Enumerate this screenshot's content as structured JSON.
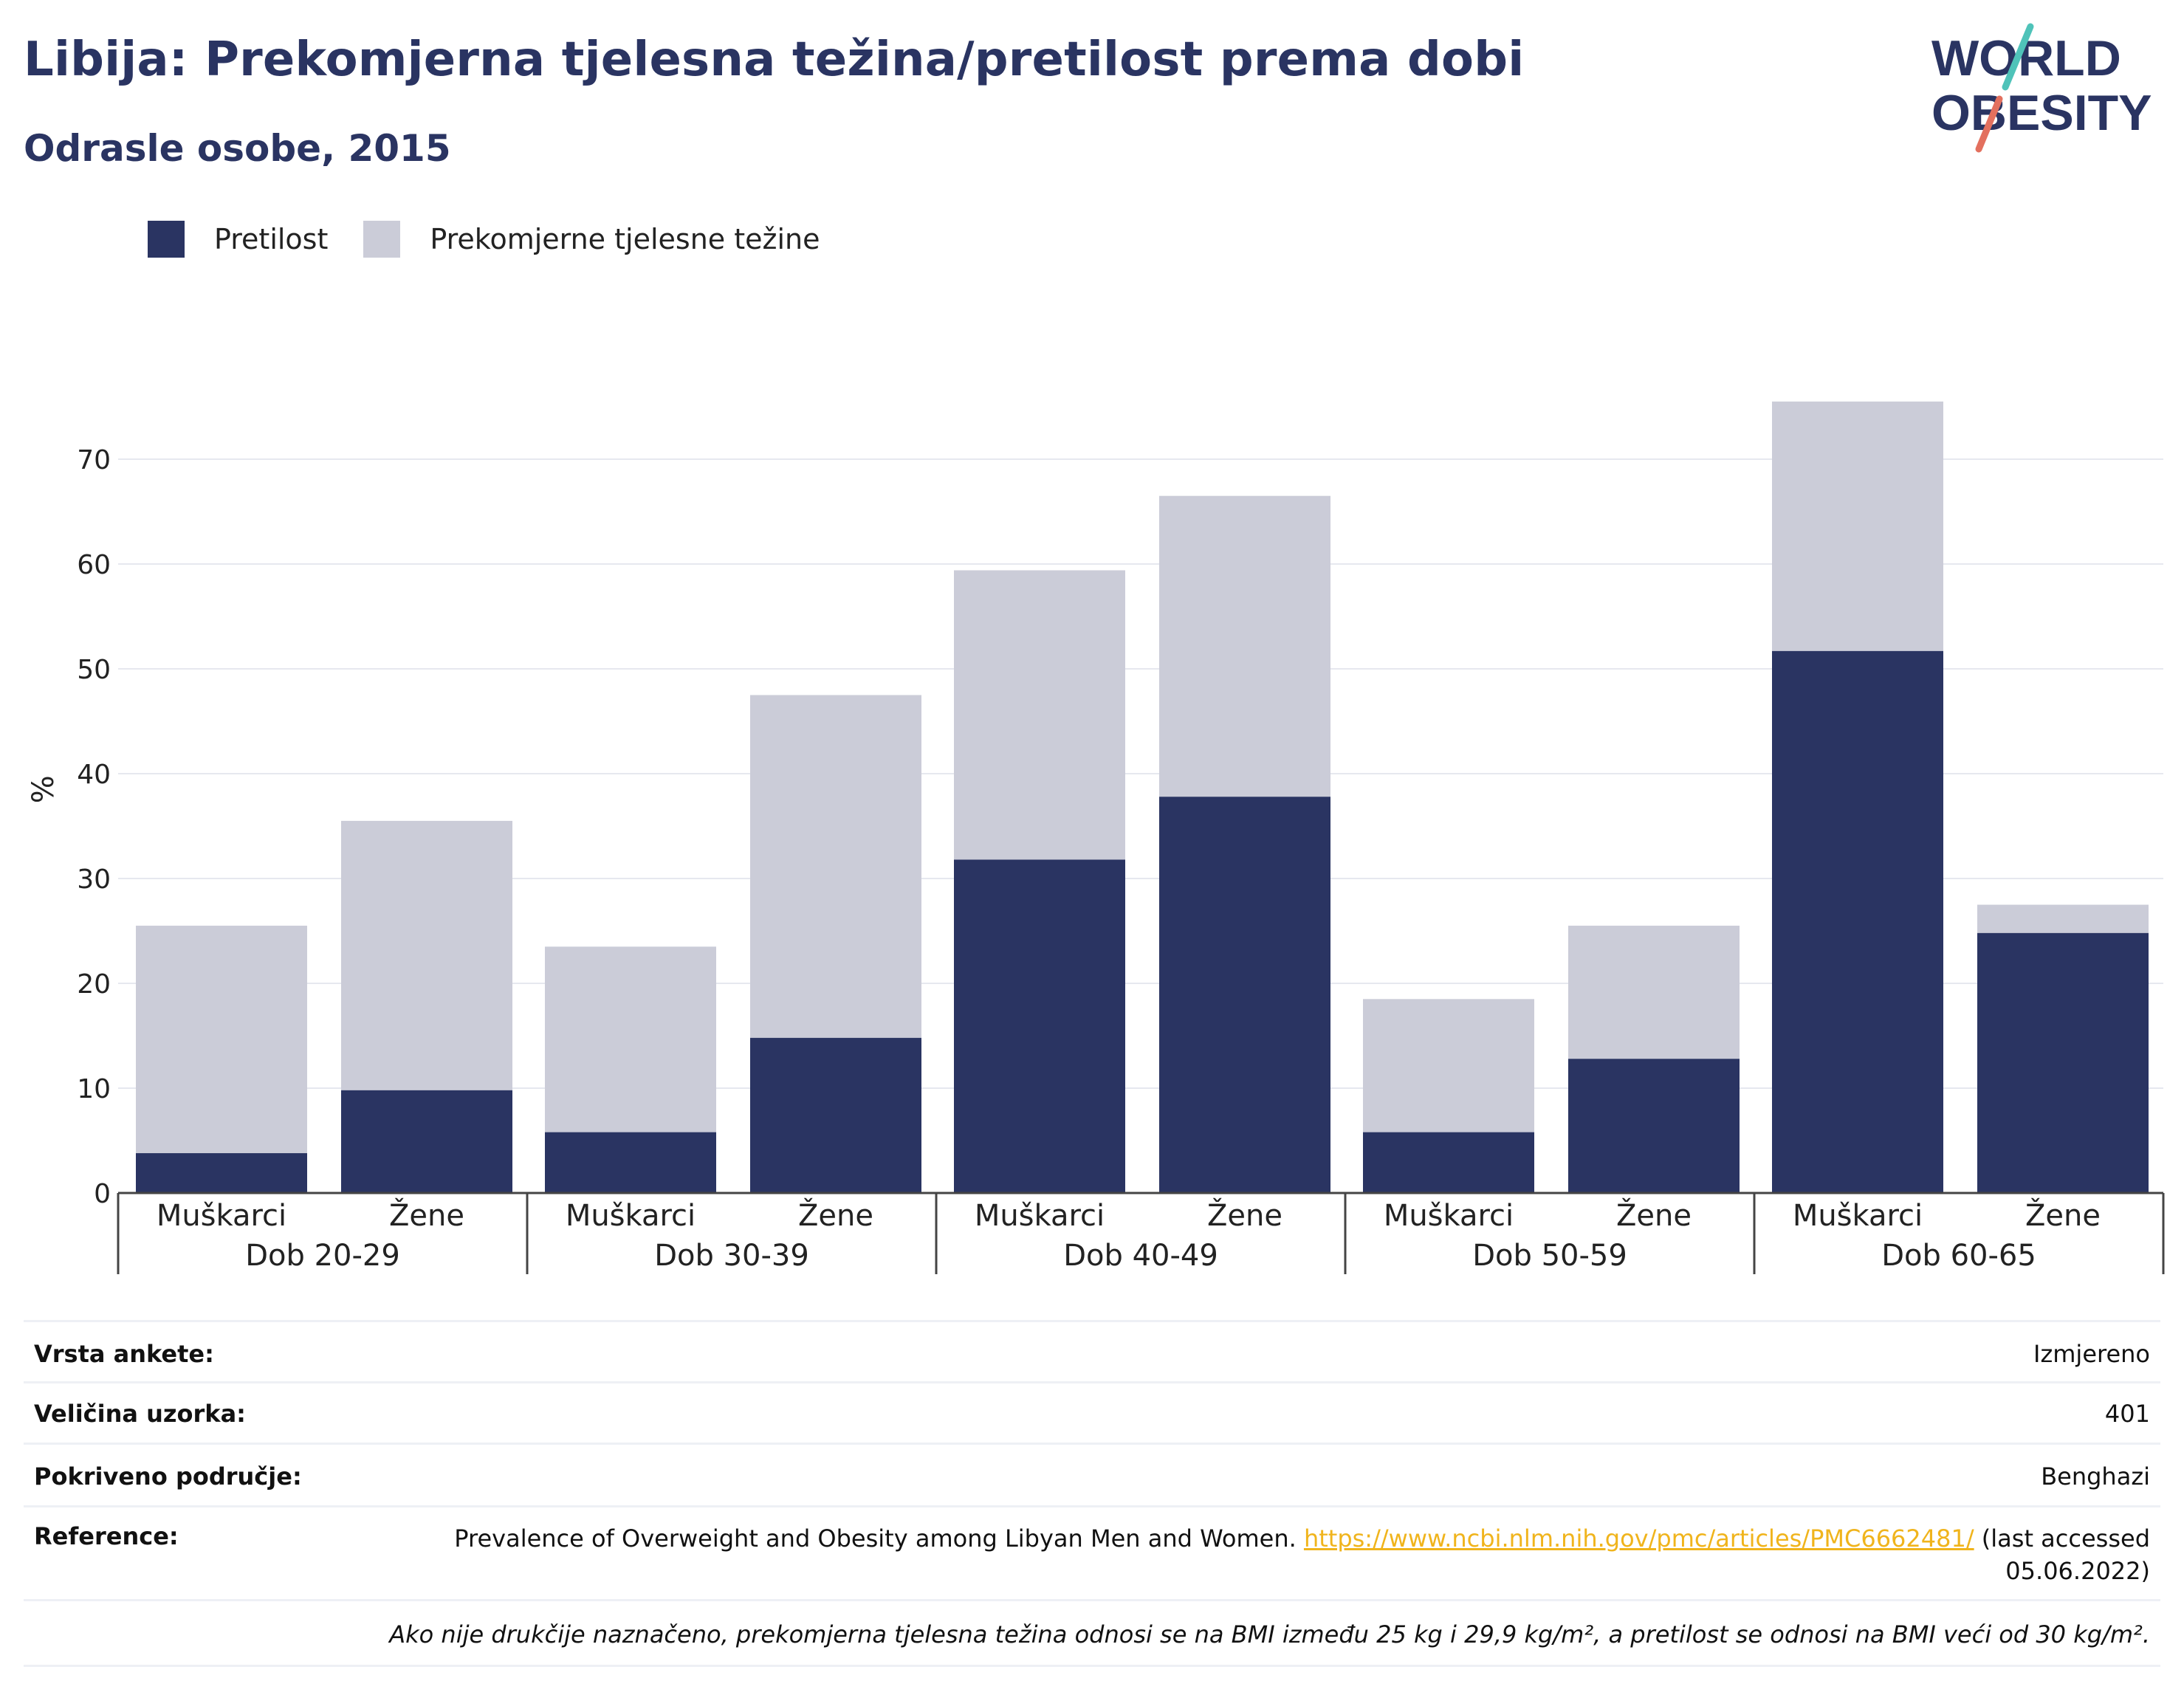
{
  "title": "Libija: Prekomjerna tjelesna težina/pretilost prema dobi",
  "subtitle": "Odrasle osobe, 2015",
  "logo": {
    "line1": "WORLD",
    "line2": "OBESITY"
  },
  "colors": {
    "obesity": "#2a3462",
    "overweight": "#cbccd8",
    "title": "#2a3462",
    "link": "#f0b41c"
  },
  "chart_data": {
    "type": "bar",
    "stacked": true,
    "ylabel": "%",
    "ylim": [
      0,
      77
    ],
    "yticks": [
      0,
      10,
      20,
      30,
      40,
      50,
      60,
      70
    ],
    "grid": true,
    "legend_position": "top-left",
    "groups": [
      {
        "label": "Dob 20-29",
        "bars": [
          {
            "label": "Muškarci",
            "obesity": 3.8,
            "total": 25.5
          },
          {
            "label": "Žene",
            "obesity": 9.8,
            "total": 35.5
          }
        ]
      },
      {
        "label": "Dob 30-39",
        "bars": [
          {
            "label": "Muškarci",
            "obesity": 5.8,
            "total": 23.5
          },
          {
            "label": "Žene",
            "obesity": 14.8,
            "total": 47.5
          }
        ]
      },
      {
        "label": "Dob 40-49",
        "bars": [
          {
            "label": "Muškarci",
            "obesity": 31.8,
            "total": 59.4
          },
          {
            "label": "Žene",
            "obesity": 37.8,
            "total": 66.5
          }
        ]
      },
      {
        "label": "Dob 50-59",
        "bars": [
          {
            "label": "Muškarci",
            "obesity": 5.8,
            "total": 18.5
          },
          {
            "label": "Žene",
            "obesity": 12.8,
            "total": 25.5
          }
        ]
      },
      {
        "label": "Dob 60-65",
        "bars": [
          {
            "label": "Muškarci",
            "obesity": 51.7,
            "total": 75.5
          },
          {
            "label": "Žene",
            "obesity": 24.8,
            "total": 27.5
          }
        ]
      }
    ],
    "series": [
      {
        "name": "Pretilost",
        "key": "obesity"
      },
      {
        "name": "Prekomjerne tjelesne težine",
        "key": "overweight"
      }
    ]
  },
  "info": {
    "survey_type": {
      "label": "Vrsta ankete:",
      "value": "Izmjereno"
    },
    "sample_size": {
      "label": "Veličina uzorka:",
      "value": "401"
    },
    "coverage": {
      "label": "Pokriveno područje:",
      "value": "Benghazi"
    },
    "reference": {
      "label": "Reference:",
      "text": "Prevalence of Overweight and Obesity among Libyan Men and Women.",
      "link": "https://www.ncbi.nlm.nih.gov/pmc/articles/PMC6662481/",
      "suffix": "(last accessed 05.06.2022)"
    },
    "note": "Ako nije drukčije naznačeno, prekomjerna tjelesna težina odnosi se na BMI između 25 kg i 29,9 kg/m², a pretilost se odnosi na BMI veći od 30 kg/m²."
  }
}
